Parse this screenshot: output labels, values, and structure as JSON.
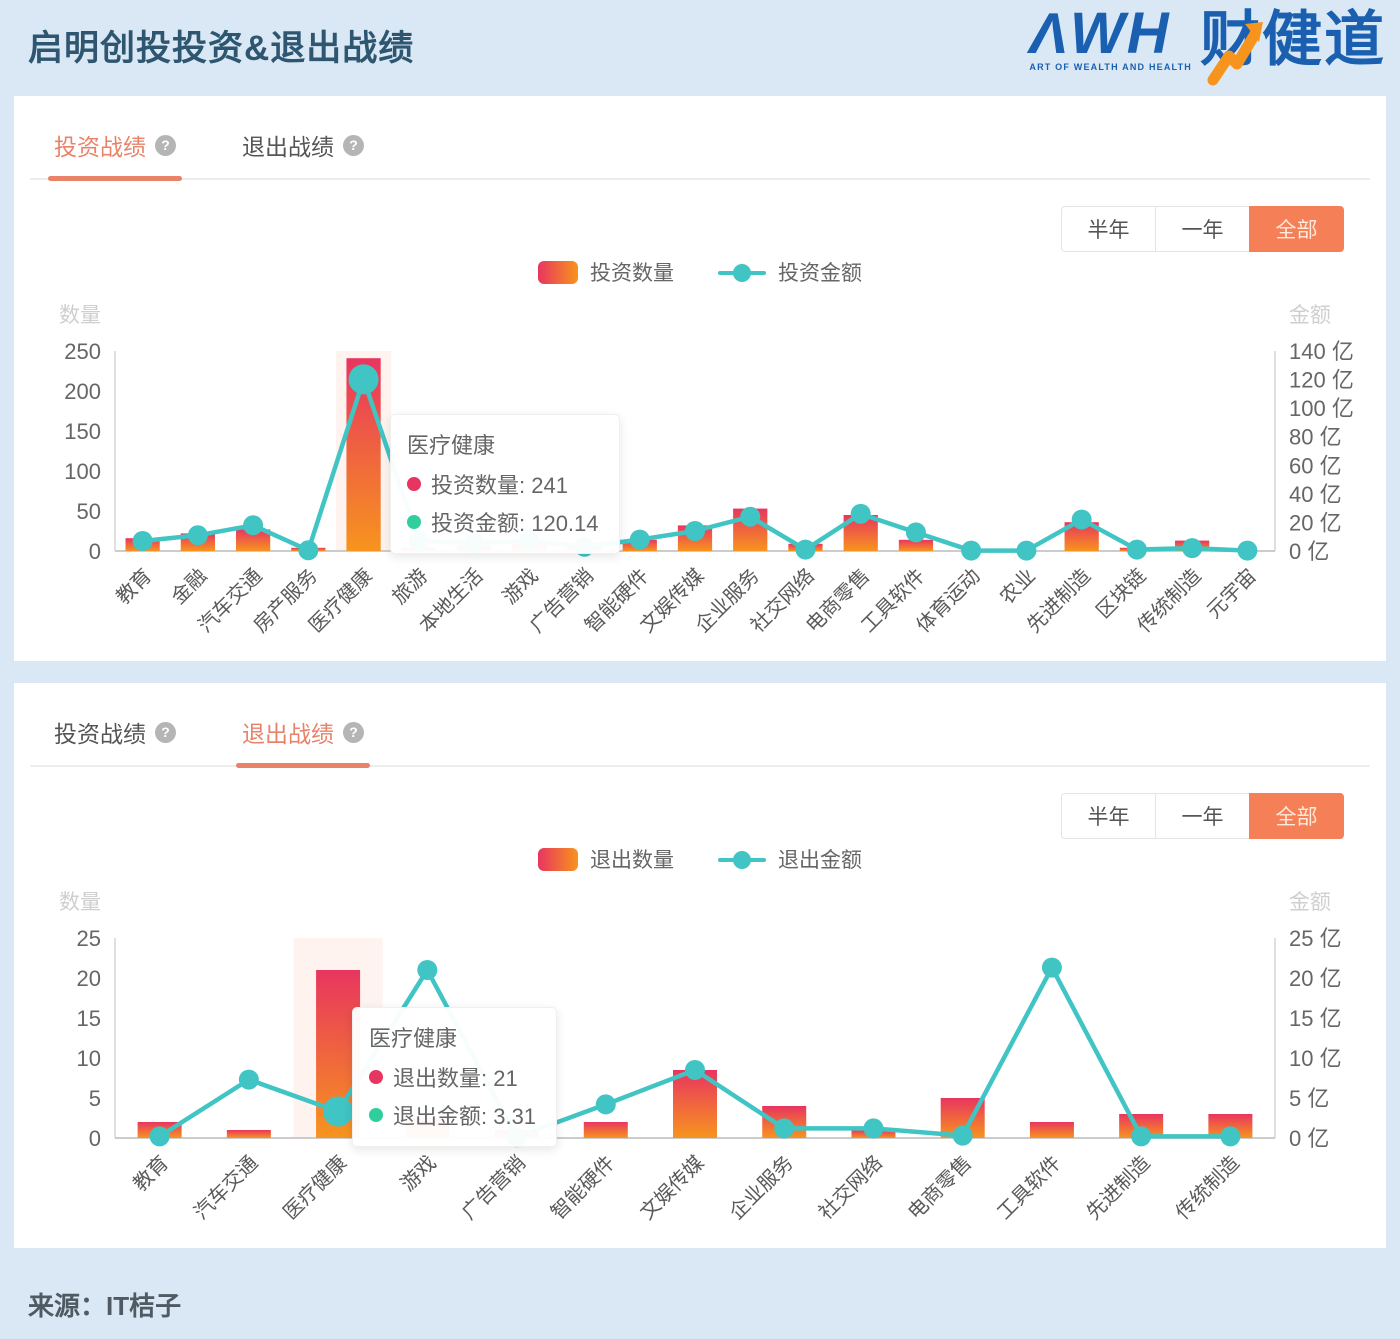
{
  "page": {
    "title": "启明创投投资&退出战绩",
    "source": "来源：IT桔子"
  },
  "logo": {
    "main": "ΛWH",
    "tagline": "ART OF WEALTH AND HEALTH",
    "cn": "财健道"
  },
  "icons": {
    "help": "?"
  },
  "colors": {
    "accent_orange": "#f57f56",
    "tab_active_orange": "#e8836a",
    "bar_gradient_top": "#e8355f",
    "bar_gradient_bottom": "#f7941e",
    "line_teal": "#41c4c4",
    "tooltip_dot_red": "#e8355f",
    "tooltip_dot_green": "#2fce9c",
    "highlight_band": "rgba(247,170,140,0.14)",
    "page_background": "#d9e8f4",
    "logo_blue": "#1a5fb0",
    "title_blue": "#2e5670"
  },
  "panels": [
    {
      "tabs": [
        {
          "label": "投资战绩",
          "active": true
        },
        {
          "label": "退出战绩",
          "active": false
        }
      ],
      "filters": [
        {
          "label": "半年",
          "active": false
        },
        {
          "label": "一年",
          "active": false
        },
        {
          "label": "全部",
          "active": true
        }
      ],
      "legend": [
        {
          "label": "投资数量"
        },
        {
          "label": "投资金额"
        }
      ],
      "tooltip": {
        "title": "医疗健康",
        "rows": [
          {
            "color": "#e8355f",
            "text": "投资数量: 241"
          },
          {
            "color": "#2fce9c",
            "text": "投资金额: 120.14"
          }
        ]
      }
    },
    {
      "tabs": [
        {
          "label": "投资战绩",
          "active": false
        },
        {
          "label": "退出战绩",
          "active": true
        }
      ],
      "filters": [
        {
          "label": "半年",
          "active": false
        },
        {
          "label": "一年",
          "active": false
        },
        {
          "label": "全部",
          "active": true
        }
      ],
      "legend": [
        {
          "label": "退出数量"
        },
        {
          "label": "退出金额"
        }
      ],
      "tooltip": {
        "title": "医疗健康",
        "rows": [
          {
            "color": "#e8355f",
            "text": "退出数量: 21"
          },
          {
            "color": "#2fce9c",
            "text": "退出金额: 3.31"
          }
        ]
      }
    }
  ],
  "chart_data": [
    {
      "type": "bar+line",
      "title": "投资战绩",
      "categories": [
        "教育",
        "金融",
        "汽车交通",
        "房产服务",
        "医疗健康",
        "旅游",
        "本地生活",
        "游戏",
        "广告营销",
        "智能硬件",
        "文娱传媒",
        "企业服务",
        "社交网络",
        "电商零售",
        "工具软件",
        "体育运动",
        "农业",
        "先进制造",
        "区块链",
        "传统制造",
        "元宇宙"
      ],
      "series": [
        {
          "name": "投资数量",
          "type": "bar",
          "axis": "left",
          "values": [
            16,
            22,
            27,
            4,
            241,
            4,
            7,
            9,
            5,
            14,
            32,
            53,
            9,
            45,
            14,
            0,
            0,
            36,
            4,
            13,
            0
          ]
        },
        {
          "name": "投资金额",
          "type": "line",
          "axis": "right",
          "values": [
            7,
            11,
            18,
            0.5,
            120.14,
            7,
            5.5,
            7,
            3,
            8,
            14,
            24,
            1,
            26,
            13,
            0.3,
            0.3,
            22,
            1,
            2,
            0.3
          ]
        }
      ],
      "left_axis": {
        "name": "数量",
        "min": 0,
        "max": 250,
        "ticks": [
          0,
          50,
          100,
          150,
          200,
          250
        ]
      },
      "right_axis": {
        "name": "金额",
        "min": 0,
        "max": 140,
        "ticks": [
          0,
          20,
          40,
          60,
          80,
          100,
          120,
          140
        ],
        "unit": "亿"
      },
      "highlight_index": 4,
      "grid": false,
      "legend_position": "top-center"
    },
    {
      "type": "bar+line",
      "title": "退出战绩",
      "categories": [
        "教育",
        "汽车交通",
        "医疗健康",
        "游戏",
        "广告营销",
        "智能硬件",
        "文娱传媒",
        "企业服务",
        "社交网络",
        "电商零售",
        "工具软件",
        "先进制造",
        "传统制造"
      ],
      "series": [
        {
          "name": "退出数量",
          "type": "bar",
          "axis": "left",
          "values": [
            2,
            1,
            21,
            2.5,
            1,
            2,
            8.5,
            4,
            1,
            5,
            2,
            3,
            3
          ]
        },
        {
          "name": "退出金额",
          "type": "line",
          "axis": "right",
          "values": [
            0.2,
            7.3,
            3.31,
            21,
            0.1,
            4.2,
            8.5,
            1.2,
            1.2,
            0.3,
            21.3,
            0.2,
            0.2
          ]
        }
      ],
      "left_axis": {
        "name": "数量",
        "min": 0,
        "max": 25,
        "ticks": [
          0,
          5,
          10,
          15,
          20,
          25
        ]
      },
      "right_axis": {
        "name": "金额",
        "min": 0,
        "max": 25,
        "ticks": [
          0,
          5,
          10,
          15,
          20,
          25
        ],
        "unit": "亿"
      },
      "highlight_index": 2,
      "grid": false,
      "legend_position": "top-center"
    }
  ]
}
